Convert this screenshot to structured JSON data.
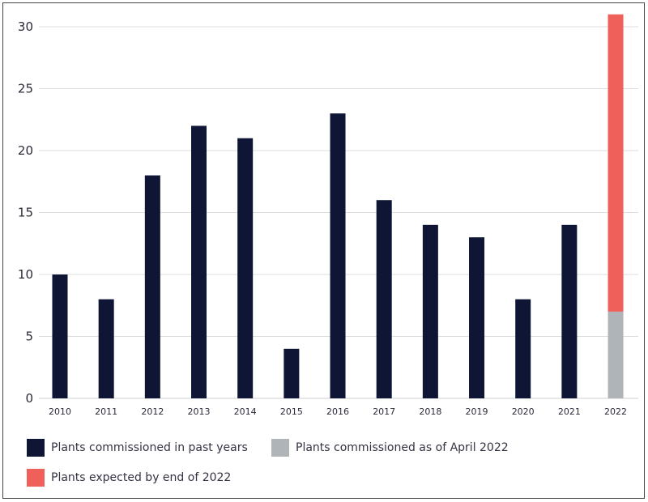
{
  "chart_data": {
    "type": "bar",
    "stacked": true,
    "categories": [
      "2010",
      "2011",
      "2012",
      "2013",
      "2014",
      "2015",
      "2016",
      "2017",
      "2018",
      "2019",
      "2020",
      "2021",
      "2022"
    ],
    "series": [
      {
        "name": "Plants commissioned in past years",
        "color": "#0f1535",
        "values": [
          10,
          8,
          18,
          22,
          21,
          4,
          23,
          16,
          14,
          13,
          8,
          14,
          0
        ]
      },
      {
        "name": "Plants commissioned as of April 2022",
        "color": "#aeb4b8",
        "values": [
          0,
          0,
          0,
          0,
          0,
          0,
          0,
          0,
          0,
          0,
          0,
          0,
          7
        ]
      },
      {
        "name": "Plants expected by end of 2022",
        "color": "#f0605a",
        "values": [
          0,
          0,
          0,
          0,
          0,
          0,
          0,
          0,
          0,
          0,
          0,
          0,
          24
        ]
      }
    ],
    "yticks": [
      0,
      5,
      10,
      15,
      20,
      25,
      30
    ],
    "ylim": [
      0,
      31
    ],
    "title": "",
    "xlabel": "",
    "ylabel": "",
    "grid": true,
    "legend_position": "bottom"
  }
}
